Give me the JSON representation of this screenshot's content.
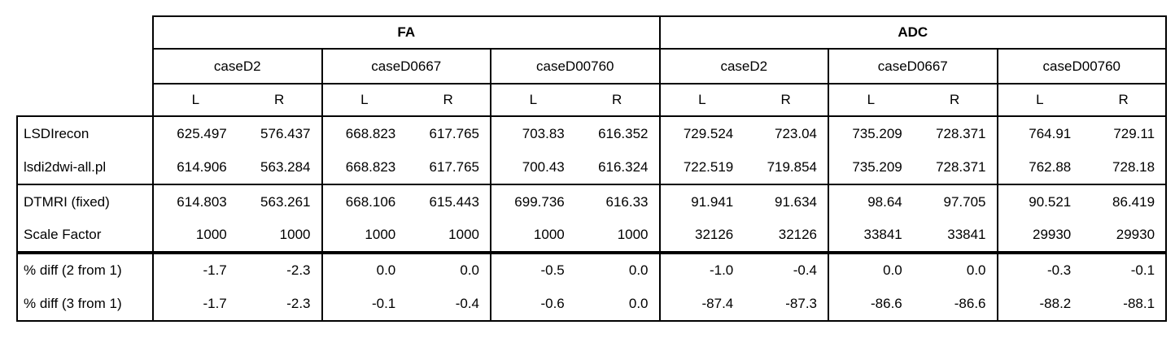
{
  "chart_data": {
    "type": "table",
    "title": "",
    "metrics": [
      "FA",
      "ADC"
    ],
    "cases": [
      "caseD2",
      "caseD0667",
      "caseD00760"
    ],
    "side_labels": [
      "L",
      "R"
    ],
    "columns": [
      "FA caseD2 L",
      "FA caseD2 R",
      "FA caseD0667 L",
      "FA caseD0667 R",
      "FA caseD00760 L",
      "FA caseD00760 R",
      "ADC caseD2 L",
      "ADC caseD2 R",
      "ADC caseD0667 L",
      "ADC caseD0667 R",
      "ADC caseD00760 L",
      "ADC caseD00760 R"
    ],
    "row_order": [
      "lsdirecon",
      "lsdi2dwi",
      "dtmri",
      "scale",
      "diff21",
      "diff31"
    ],
    "rows": {
      "lsdirecon": {
        "label": "LSDIrecon",
        "v": [
          "625.497",
          "576.437",
          "668.823",
          "617.765",
          "703.83",
          "616.352",
          "729.524",
          "723.04",
          "735.209",
          "728.371",
          "764.91",
          "729.11"
        ]
      },
      "lsdi2dwi": {
        "label": "lsdi2dwi-all.pl",
        "v": [
          "614.906",
          "563.284",
          "668.823",
          "617.765",
          "700.43",
          "616.324",
          "722.519",
          "719.854",
          "735.209",
          "728.371",
          "762.88",
          "728.18"
        ]
      },
      "dtmri": {
        "label": "DTMRI (fixed)",
        "v": [
          "614.803",
          "563.261",
          "668.106",
          "615.443",
          "699.736",
          "616.33",
          "91.941",
          "91.634",
          "98.64",
          "97.705",
          "90.521",
          "86.419"
        ]
      },
      "scale": {
        "label": "Scale Factor",
        "v": [
          "1000",
          "1000",
          "1000",
          "1000",
          "1000",
          "1000",
          "32126",
          "32126",
          "33841",
          "33841",
          "29930",
          "29930"
        ]
      },
      "diff21": {
        "label": "% diff (2 from 1)",
        "v": [
          "-1.7",
          "-2.3",
          "0.0",
          "0.0",
          "-0.5",
          "0.0",
          "-1.0",
          "-0.4",
          "0.0",
          "0.0",
          "-0.3",
          "-0.1"
        ]
      },
      "diff31": {
        "label": "% diff (3 from 1)",
        "v": [
          "-1.7",
          "-2.3",
          "-0.1",
          "-0.4",
          "-0.6",
          "0.0",
          "-87.4",
          "-87.3",
          "-86.6",
          "-86.6",
          "-88.2",
          "-88.1"
        ]
      }
    },
    "layout": {
      "grid": "on",
      "border_color": "#000000",
      "background": "#ffffff"
    }
  }
}
